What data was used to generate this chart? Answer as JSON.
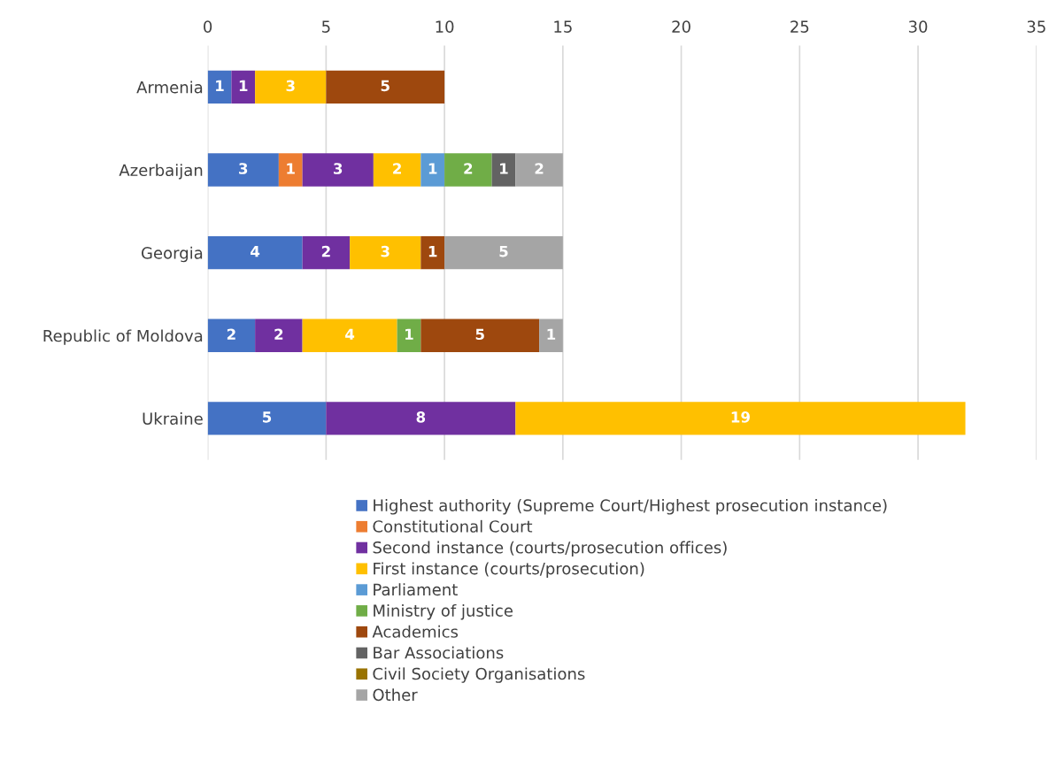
{
  "chart_data": {
    "type": "bar",
    "orientation": "horizontal",
    "stacked": true,
    "data_labels": true,
    "grid": "x",
    "legend": "bottom",
    "categories": [
      "Armenia",
      "Azerbaijan",
      "Georgia",
      "Republic of Moldova",
      "Ukraine"
    ],
    "xlim": [
      0,
      35
    ],
    "xticks": [
      0,
      5,
      10,
      15,
      20,
      25,
      30,
      35
    ],
    "series": [
      {
        "name": "Highest authority (Supreme Court/Highest prosecution instance)",
        "color": "#4472c4",
        "values": [
          1,
          3,
          4,
          2,
          5
        ]
      },
      {
        "name": "Constitutional Court",
        "color": "#ed7d31",
        "values": [
          null,
          1,
          null,
          null,
          null
        ]
      },
      {
        "name": "Second instance (courts/prosecution offices)",
        "color": "#7030a0",
        "values": [
          1,
          3,
          2,
          2,
          8
        ]
      },
      {
        "name": "First instance (courts/prosecution)",
        "color": "#ffc000",
        "values": [
          3,
          2,
          3,
          4,
          19
        ]
      },
      {
        "name": "Parliament",
        "color": "#5b9bd5",
        "values": [
          null,
          1,
          null,
          null,
          null
        ]
      },
      {
        "name": "Ministry of justice",
        "color": "#70ad47",
        "values": [
          null,
          2,
          null,
          1,
          null
        ]
      },
      {
        "name": "Academics",
        "color": "#9e480e",
        "values": [
          5,
          null,
          1,
          5,
          null
        ]
      },
      {
        "name": "Bar Associations",
        "color": "#636363",
        "values": [
          null,
          1,
          null,
          null,
          null
        ]
      },
      {
        "name": "Civil Society Organisations",
        "color": "#997300",
        "values": [
          null,
          null,
          null,
          null,
          null
        ]
      },
      {
        "name": "Other",
        "color": "#a5a5a5",
        "values": [
          null,
          2,
          5,
          1,
          null
        ]
      }
    ]
  }
}
